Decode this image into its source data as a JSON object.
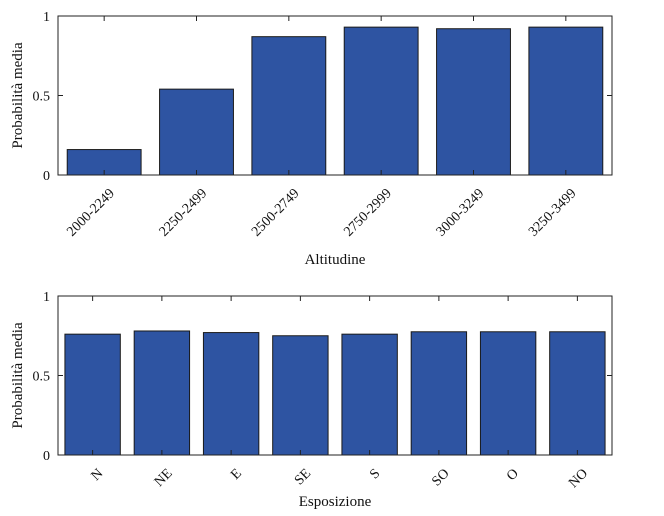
{
  "chart_data": [
    {
      "type": "bar",
      "xlabel": "Altitudine",
      "ylabel": "Probabilità media",
      "categories": [
        "2000-2249",
        "2250-2499",
        "2500-2749",
        "2750-2999",
        "3000-3249",
        "3250-3499"
      ],
      "values": [
        0.16,
        0.54,
        0.87,
        0.93,
        0.92,
        0.93
      ],
      "ylim": [
        0,
        1
      ],
      "yticks": [
        "0",
        "0.5",
        "1"
      ],
      "tick_label_rotation_deg": 45,
      "bar_color": "#2e54a2",
      "grid": false
    },
    {
      "type": "bar",
      "xlabel": "Esposizione",
      "ylabel": "Probabilità media",
      "categories": [
        "N",
        "NE",
        "E",
        "SE",
        "S",
        "SO",
        "O",
        "NO"
      ],
      "values": [
        0.76,
        0.78,
        0.77,
        0.75,
        0.76,
        0.775,
        0.775,
        0.775
      ],
      "ylim": [
        0,
        1
      ],
      "yticks": [
        "0",
        "0.5",
        "1"
      ],
      "tick_label_rotation_deg": 45,
      "bar_color": "#2e54a2",
      "grid": false
    }
  ]
}
